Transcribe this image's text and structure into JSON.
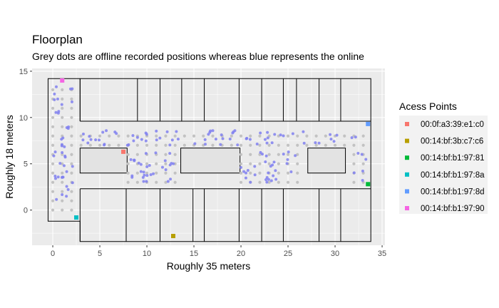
{
  "chart_data": {
    "type": "scatter",
    "title": "Floorplan",
    "subtitle": "Grey dots are offline recorded positions whereas blue represents the online",
    "xlabel": "Roughly 35 meters",
    "ylabel": "Roughly 18 meters",
    "xlim": [
      -2.2,
      35.3
    ],
    "ylim": [
      -3.8,
      15.3
    ],
    "xticks": [
      0,
      5,
      10,
      15,
      20,
      25,
      30,
      35
    ],
    "yticks": [
      0,
      5,
      10,
      15
    ],
    "grid": true,
    "legend_position": "right",
    "colors": {
      "panel_bg": "#ebebeb",
      "grid": "#ffffff",
      "offline_point": "#c2c2c2",
      "online_point": "#8080f0"
    },
    "access_points": {
      "legend_title": "Acess Points",
      "items": [
        {
          "name": "00:0f:a3:39:e1:c0",
          "x": 7.5,
          "y": 6.3,
          "color": "#F8766D"
        },
        {
          "name": "00:14:bf:3b:c7:c6",
          "x": 12.8,
          "y": -2.8,
          "color": "#B79F00"
        },
        {
          "name": "00:14:bf:b1:97:81",
          "x": 33.5,
          "y": 2.8,
          "color": "#00BA38"
        },
        {
          "name": "00:14:bf:b1:97:8a",
          "x": 2.5,
          "y": -0.8,
          "color": "#00BFC4"
        },
        {
          "name": "00:14:bf:b1:97:8d",
          "x": 33.5,
          "y": 9.3,
          "color": "#619CFF"
        },
        {
          "name": "00:14:bf:b1:97:90",
          "x": 1.0,
          "y": 14.0,
          "color": "#F564E3"
        }
      ]
    }
  }
}
